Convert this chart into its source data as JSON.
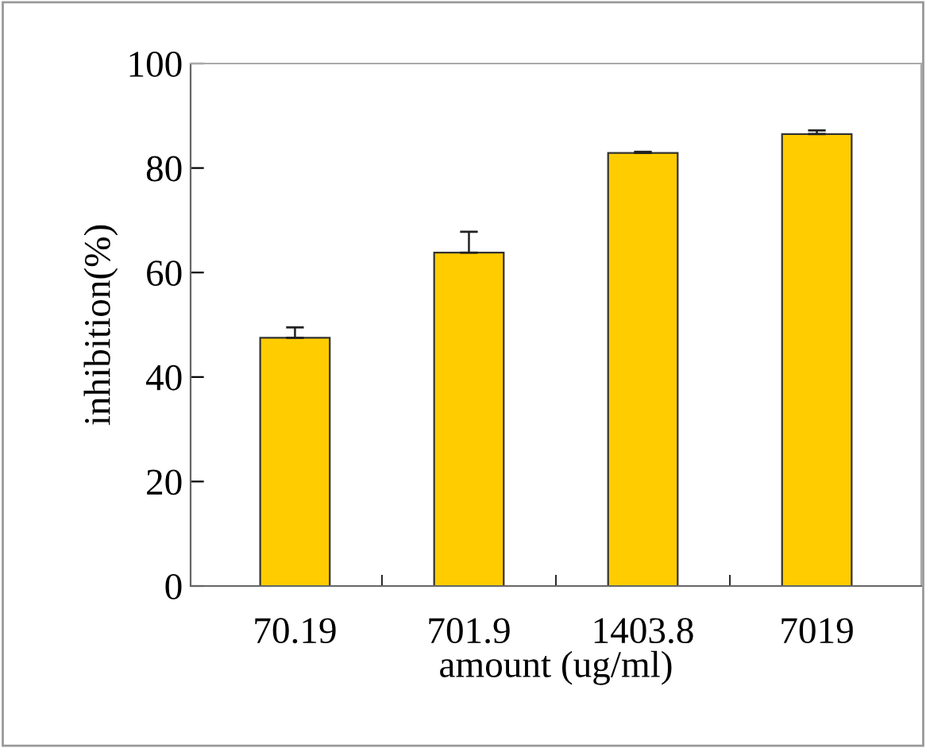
{
  "chart_data": {
    "type": "bar",
    "xlabel": "amount (ug/ml)",
    "ylabel": "inhibition(%)",
    "categories": [
      "70.19",
      "701.9",
      "1403.8",
      "7019"
    ],
    "values": [
      47.5,
      63.8,
      82.9,
      86.5
    ],
    "errors": [
      [
        47.5,
        49.5
      ],
      [
        63.8,
        67.8
      ],
      [
        82.9,
        83.1
      ],
      [
        86.5,
        87.2
      ]
    ],
    "color": "#ffcc00",
    "ylim": [
      0,
      100
    ],
    "yticks": [
      0,
      20,
      40,
      60,
      80,
      100
    ],
    "grid": false,
    "legend": false
  }
}
